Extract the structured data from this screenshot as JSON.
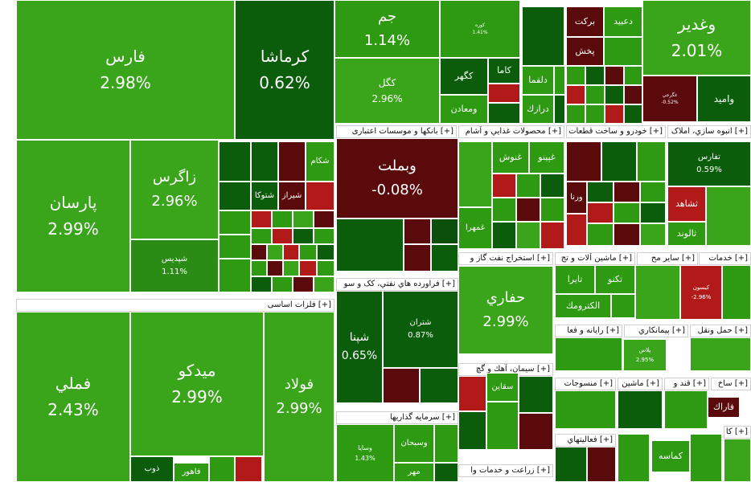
{
  "chart_data": {
    "type": "heatmap",
    "colors": {
      "up_strong": "#3aa51b",
      "up": "#2e9a12",
      "up_dark": "#0b5d0b",
      "flat": "#0a4f0a",
      "down": "#5a0a0a",
      "down_strong": "#b21a1a"
    },
    "sectors": [
      {
        "label": "[+] فلزات اساسی"
      },
      {
        "label": "[+] بانکها و موسسات اعتباری"
      },
      {
        "label": "[+] محصولات غذايي و آشام"
      },
      {
        "label": "[+] خودرو و ساخت قطعات"
      },
      {
        "label": "[+] انبوه سازي، املاک"
      },
      {
        "label": "[+] فراورده هاي نفتي، کک و سو"
      },
      {
        "label": "[+] استخراج نفت گاز و"
      },
      {
        "label": "[+] ماشين آلات و تج"
      },
      {
        "label": "[+] ساير مح"
      },
      {
        "label": "[+] خدمات"
      },
      {
        "label": "[+] رايانه و فعا"
      },
      {
        "label": "[+] پيمانكاري"
      },
      {
        "label": "[+] حمل ونقل"
      },
      {
        "label": "[+] سيمان، آهك و گچ"
      },
      {
        "label": "[+] منسوجات"
      },
      {
        "label": "[+] ماشين"
      },
      {
        "label": "[+] قند و"
      },
      {
        "label": "[+] ساخ"
      },
      {
        "label": "[+] سرمايه گذاريها"
      },
      {
        "label": "[+] فعاليتهاي"
      },
      {
        "label": "[+] زراعت و خدمات وا"
      },
      {
        "label": "[+] كا"
      }
    ],
    "tiles": [
      {
        "symbol": "فارس",
        "change": "2.98%",
        "color": "#3aa51b"
      },
      {
        "symbol": "كرماشا",
        "change": "0.62%",
        "color": "#0b5d0b"
      },
      {
        "symbol": "پارسان",
        "change": "2.99%",
        "color": "#3aa51b"
      },
      {
        "symbol": "زاگرس",
        "change": "2.96%",
        "color": "#3aa51b"
      },
      {
        "symbol": "شپديس",
        "change": "1.11%",
        "color": "#2a8c14"
      },
      {
        "symbol": "جم",
        "change": "1.14%",
        "color": "#2e9a12"
      },
      {
        "symbol": "كگل",
        "change": "2.96%",
        "color": "#3aa51b"
      },
      {
        "symbol": "وغدير",
        "change": "2.01%",
        "color": "#3aa51b"
      },
      {
        "symbol": "فملي",
        "change": "2.43%",
        "color": "#3aa51b"
      },
      {
        "symbol": "ميدكو",
        "change": "2.99%",
        "color": "#3aa51b"
      },
      {
        "symbol": "فولاد",
        "change": "2.99%",
        "color": "#3aa51b"
      },
      {
        "symbol": "وبملت",
        "change": "-0.08%",
        "color": "#5a0a0a"
      },
      {
        "symbol": "شپنا",
        "change": "0.65%",
        "color": "#0b5d0b"
      },
      {
        "symbol": "شتران",
        "change": "0.87%",
        "color": "#0b5d0b"
      },
      {
        "symbol": "حفاري",
        "change": "2.99%",
        "color": "#3aa51b"
      },
      {
        "symbol": "تفارس",
        "change": "0.59%",
        "color": "#0b5d0b"
      },
      {
        "symbol": "وسايا",
        "change": "1.43%",
        "color": "#2e9a12"
      },
      {
        "symbol": "كيسون",
        "change": "-2.96%",
        "color": "#b21a1a"
      },
      {
        "symbol": "پلاس",
        "change": "2.95%",
        "color": "#3aa51b"
      },
      {
        "symbol": "كگهر",
        "change": "",
        "color": "#0b5d0b"
      },
      {
        "symbol": "كاما",
        "change": "",
        "color": "#0b5d0b"
      },
      {
        "symbol": "ومعادن",
        "change": "",
        "color": "#2e9a12"
      },
      {
        "symbol": "بركت",
        "change": "",
        "color": "#5a0a0a"
      },
      {
        "symbol": "دعبيد",
        "change": "",
        "color": "#2e9a12"
      },
      {
        "symbol": "پخش",
        "change": "",
        "color": "#5a0a0a"
      },
      {
        "symbol": "دلقما",
        "change": "",
        "color": "#2e9a12"
      },
      {
        "symbol": "درازك",
        "change": "",
        "color": "#2e9a12"
      },
      {
        "symbol": "واميد",
        "change": "",
        "color": "#0b5d0b"
      },
      {
        "symbol": "غگرجي",
        "change": "-0.52%",
        "color": "#5a0a0a"
      },
      {
        "symbol": "كوره",
        "change": "1.41%",
        "color": "#2e9a12"
      },
      {
        "symbol": "شكام",
        "change": "",
        "color": "#2e9a12"
      },
      {
        "symbol": "شيراز",
        "change": "",
        "color": "#5a0a0a"
      },
      {
        "symbol": "شتوكا",
        "change": "",
        "color": "#0b5d0b"
      },
      {
        "symbol": "غنوش",
        "change": "",
        "color": "#2e9a12"
      },
      {
        "symbol": "غپينو",
        "change": "",
        "color": "#2e9a12"
      },
      {
        "symbol": "غمهرا",
        "change": "",
        "color": "#2e9a12"
      },
      {
        "symbol": "ورنا",
        "change": "",
        "color": "#5a0a0a"
      },
      {
        "symbol": "ثشاهد",
        "change": "",
        "color": "#b21a1a"
      },
      {
        "symbol": "ثالوند",
        "change": "",
        "color": "#2e9a12"
      },
      {
        "symbol": "تكنو",
        "change": "",
        "color": "#2e9a12"
      },
      {
        "symbol": "تايرا",
        "change": "",
        "color": "#2e9a12"
      },
      {
        "symbol": "الكترومك",
        "change": "",
        "color": "#2e9a12"
      },
      {
        "symbol": "سقاين",
        "change": "",
        "color": "#2e9a12"
      },
      {
        "symbol": "وسبحان",
        "change": "",
        "color": "#2e9a12"
      },
      {
        "symbol": "فاهور",
        "change": "",
        "color": "#2e9a12"
      },
      {
        "symbol": "ذوب",
        "change": "",
        "color": "#0b5d0b"
      },
      {
        "symbol": "كماسه",
        "change": "",
        "color": "#2e9a12"
      },
      {
        "symbol": "فاراك",
        "change": "",
        "color": "#5a0a0a"
      },
      {
        "symbol": "مهر",
        "change": "",
        "color": "#2e9a12"
      }
    ]
  }
}
